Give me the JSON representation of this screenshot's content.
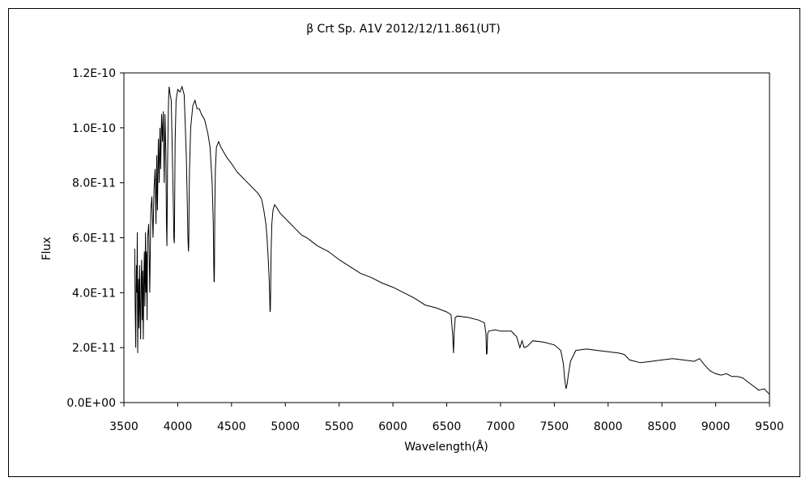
{
  "chart_data": {
    "type": "line",
    "title": "β Crt   Sp. A1V   2012/12/11.861(UT)",
    "xlabel": "Wavelength(Å)",
    "ylabel": "Flux",
    "xlim": [
      3500,
      9500
    ],
    "ylim": [
      0,
      1.2e-10
    ],
    "xticks": [
      3500,
      4000,
      4500,
      5000,
      5500,
      6000,
      6500,
      7000,
      7500,
      8000,
      8500,
      9000,
      9500
    ],
    "xtick_labels": [
      "3500",
      "4000",
      "4500",
      "5000",
      "5500",
      "6000",
      "6500",
      "7000",
      "7500",
      "8000",
      "8500",
      "9000",
      "9500"
    ],
    "yticks": [
      0,
      2e-11,
      4e-11,
      6e-11,
      8e-11,
      1e-10,
      1.2e-10
    ],
    "ytick_labels": [
      "0.0E+00",
      "2.0E-11",
      "4.0E-11",
      "6.0E-11",
      "8.0E-11",
      "1.0E-10",
      "1.2E-10"
    ],
    "grid": false,
    "legend": "none",
    "series": [
      {
        "x": [
          3600,
          3605,
          3610,
          3613,
          3616,
          3620,
          3624,
          3628,
          3632,
          3636,
          3640,
          3645,
          3650,
          3655,
          3660,
          3665,
          3670,
          3675,
          3680,
          3685,
          3690,
          3695,
          3700,
          3705,
          3710,
          3715,
          3720,
          3730,
          3740,
          3750,
          3760,
          3770,
          3780,
          3790,
          3798,
          3805,
          3812,
          3820,
          3828,
          3835,
          3842,
          3850,
          3858,
          3866,
          3874,
          3882,
          3890,
          3895,
          3900,
          3905,
          3910,
          3915,
          3920,
          3930,
          3940,
          3950,
          3960,
          3964,
          3968,
          3970,
          3972,
          3976,
          3985,
          4000,
          4020,
          4040,
          4060,
          4080,
          4090,
          4095,
          4100,
          4102,
          4104,
          4106,
          4110,
          4120,
          4140,
          4160,
          4180,
          4200,
          4220,
          4250,
          4280,
          4300,
          4320,
          4330,
          4335,
          4338,
          4340,
          4342,
          4345,
          4350,
          4360,
          4380,
          4400,
          4430,
          4460,
          4500,
          4550,
          4600,
          4650,
          4700,
          4750,
          4780,
          4800,
          4820,
          4830,
          4840,
          4850,
          4855,
          4858,
          4861,
          4864,
          4868,
          4875,
          4885,
          4900,
          4920,
          4950,
          5000,
          5050,
          5100,
          5150,
          5200,
          5300,
          5400,
          5500,
          5600,
          5700,
          5800,
          5900,
          6000,
          6100,
          6200,
          6300,
          6400,
          6500,
          6540,
          6555,
          6563,
          6570,
          6580,
          6600,
          6700,
          6800,
          6850,
          6865,
          6870,
          6875,
          6880,
          6890,
          6950,
          7000,
          7100,
          7150,
          7180,
          7200,
          7220,
          7250,
          7300,
          7400,
          7500,
          7560,
          7585,
          7595,
          7605,
          7610,
          7620,
          7630,
          7650,
          7700,
          7800,
          7900,
          8000,
          8100,
          8150,
          8200,
          8300,
          8400,
          8500,
          8600,
          8700,
          8800,
          8850,
          8900,
          8950,
          9000,
          9050,
          9100,
          9150,
          9200,
          9250,
          9300,
          9350,
          9400,
          9450,
          9500
        ],
        "y": [
          5.6e-11,
          3.5e-11,
          2e-11,
          4e-11,
          5e-11,
          4e-11,
          6.2e-11,
          1.8e-11,
          3.5e-11,
          4.5e-11,
          2.7e-11,
          5e-11,
          3.5e-11,
          2.3e-11,
          4.5e-11,
          5.2e-11,
          3e-11,
          4.8e-11,
          2.3e-11,
          4.5e-11,
          5.5e-11,
          3.5e-11,
          6.2e-11,
          4e-11,
          5.5e-11,
          3e-11,
          6e-11,
          6.5e-11,
          4e-11,
          7e-11,
          7.5e-11,
          6e-11,
          7.8e-11,
          8.5e-11,
          6.5e-11,
          9e-11,
          7e-11,
          9.6e-11,
          8e-11,
          1e-10,
          8.5e-11,
          1.05e-10,
          9.5e-11,
          1.06e-10,
          8e-11,
          1.05e-10,
          9e-11,
          6.5e-11,
          5.7e-11,
          8.5e-11,
          1e-10,
          1.1e-10,
          1.15e-10,
          1.12e-10,
          1.1e-10,
          9e-11,
          7e-11,
          6e-11,
          5.8e-11,
          6.3e-11,
          7.5e-11,
          9.5e-11,
          1.1e-10,
          1.14e-10,
          1.13e-10,
          1.15e-10,
          1.12e-10,
          9e-11,
          7e-11,
          6e-11,
          5.5e-11,
          5.7e-11,
          6.2e-11,
          7.5e-11,
          8.5e-11,
          1e-10,
          1.08e-10,
          1.1e-10,
          1.07e-10,
          1.07e-10,
          1.05e-10,
          1.03e-10,
          9.8e-11,
          9.3e-11,
          8e-11,
          6.5e-11,
          5e-11,
          4.4e-11,
          4.4e-11,
          5e-11,
          7e-11,
          8.5e-11,
          9.3e-11,
          9.5e-11,
          9.3e-11,
          9.1e-11,
          8.9e-11,
          8.7e-11,
          8.4e-11,
          8.2e-11,
          8e-11,
          7.8e-11,
          7.6e-11,
          7.4e-11,
          7e-11,
          6.5e-11,
          6e-11,
          5.3e-11,
          4.5e-11,
          3.8e-11,
          3.3e-11,
          3.4e-11,
          4.2e-11,
          5.5e-11,
          6.5e-11,
          7e-11,
          7.2e-11,
          7.1e-11,
          6.9e-11,
          6.7e-11,
          6.5e-11,
          6.3e-11,
          6.1e-11,
          6e-11,
          5.7e-11,
          5.5e-11,
          5.2e-11,
          4.95e-11,
          4.7e-11,
          4.55e-11,
          4.35e-11,
          4.2e-11,
          4e-11,
          3.8e-11,
          3.55e-11,
          3.45e-11,
          3.3e-11,
          3.2e-11,
          2.5e-11,
          1.8e-11,
          2.6e-11,
          3.1e-11,
          3.15e-11,
          3.1e-11,
          3e-11,
          2.9e-11,
          2.5e-11,
          1.75e-11,
          1.8e-11,
          2.5e-11,
          2.6e-11,
          2.65e-11,
          2.6e-11,
          2.6e-11,
          2.4e-11,
          2e-11,
          2.25e-11,
          2e-11,
          2.05e-11,
          2.25e-11,
          2.2e-11,
          2.1e-11,
          1.9e-11,
          1.4e-11,
          9e-12,
          6e-12,
          5e-12,
          7e-12,
          1e-11,
          1.5e-11,
          1.9e-11,
          1.95e-11,
          1.9e-11,
          1.85e-11,
          1.8e-11,
          1.75e-11,
          1.55e-11,
          1.45e-11,
          1.5e-11,
          1.55e-11,
          1.6e-11,
          1.55e-11,
          1.5e-11,
          1.6e-11,
          1.35e-11,
          1.15e-11,
          1.05e-11,
          1e-11,
          1.05e-11,
          9.5e-12,
          9.5e-12,
          9e-12,
          7.5e-12,
          6e-12,
          4.5e-12,
          5e-12,
          3e-12
        ]
      }
    ]
  }
}
